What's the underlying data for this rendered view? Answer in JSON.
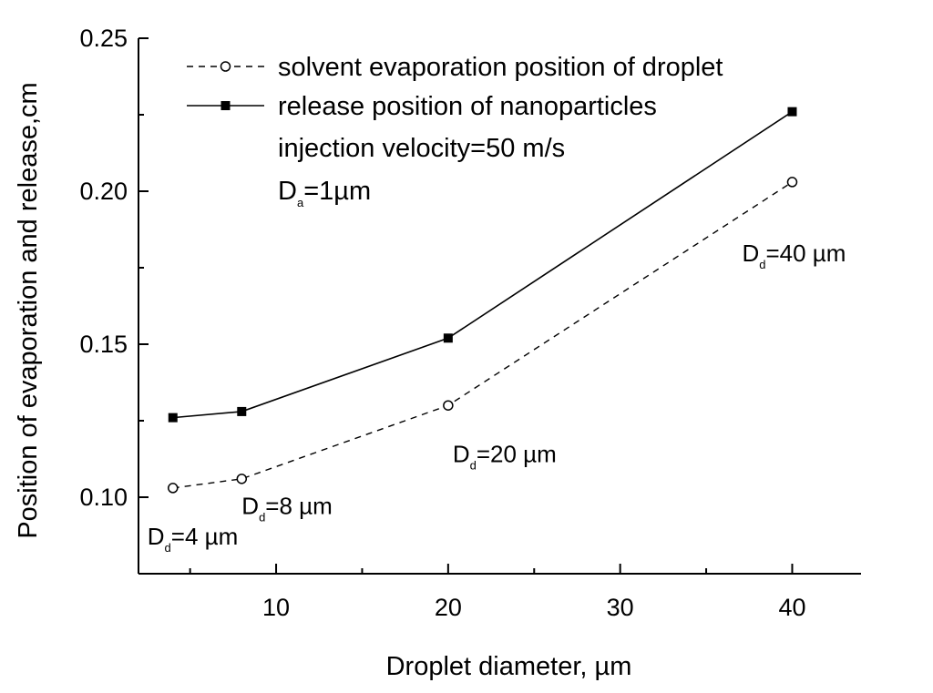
{
  "chart_data": {
    "type": "line",
    "xlabel": "Droplet diameter, µm",
    "ylabel": "Position of evaporation and release,cm",
    "xlim": [
      2,
      44
    ],
    "ylim": [
      0.075,
      0.25
    ],
    "x_ticks": [
      {
        "value": 10,
        "label": "10"
      },
      {
        "value": 20,
        "label": "20"
      },
      {
        "value": 30,
        "label": "30"
      },
      {
        "value": 40,
        "label": "40"
      }
    ],
    "y_ticks": [
      {
        "value": 0.1,
        "label": "0.10"
      },
      {
        "value": 0.15,
        "label": "0.15"
      },
      {
        "value": 0.2,
        "label": "0.20"
      },
      {
        "value": 0.25,
        "label": "0.25"
      }
    ],
    "x": [
      4,
      8,
      20,
      40
    ],
    "series": [
      {
        "name": "solvent evaporation position of droplet",
        "values": [
          0.103,
          0.106,
          0.13,
          0.203
        ],
        "style": "dashed",
        "marker": "open-circle",
        "color": "#000000"
      },
      {
        "name": "release position of nanoparticles",
        "values": [
          0.126,
          0.128,
          0.152,
          0.226
        ],
        "style": "solid",
        "marker": "filled-square",
        "color": "#000000"
      }
    ],
    "legend_placement": "top-left",
    "legend_extra": [
      "injection velocity=50 m/s"
    ],
    "legend_da": {
      "main": "D",
      "sub": "a",
      "rest": "=1µm"
    },
    "annotations": [
      {
        "main": "D",
        "sub": "d",
        "rest": "=4 µm",
        "x": 4,
        "y": 0.0875
      },
      {
        "main": "D",
        "sub": "d",
        "rest": "=8 µm",
        "x": 8,
        "y": 0.0975
      },
      {
        "main": "D",
        "sub": "d",
        "rest": "=20 µm",
        "x": 20,
        "y": 0.1145
      },
      {
        "main": "D",
        "sub": "d",
        "rest": "=40 µm",
        "x": 40,
        "y": 0.18
      }
    ],
    "grid": false
  }
}
